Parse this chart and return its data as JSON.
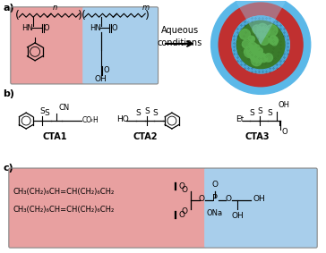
{
  "panel_a_label": "a)",
  "panel_b_label": "b)",
  "panel_c_label": "c)",
  "arrow_text_1": "Aqueous",
  "arrow_text_2": "conditions",
  "cta1_label": "CTA1",
  "cta2_label": "CTA2",
  "cta3_label": "CTA3",
  "red_bg": "#E8A0A0",
  "blue_bg": "#A8CEEB",
  "vesicle_outer": "#5BB8E8",
  "vesicle_red": "#C03030",
  "vesicle_inner_blue": "#4BA8D8",
  "vesicle_green_dark": "#3A7A2A",
  "vesicle_green_light": "#5AAF4E",
  "lipid_red_bg": "#E8A0A0",
  "lipid_blue_bg": "#A8CEEB",
  "background": "#ffffff",
  "black": "#000000"
}
